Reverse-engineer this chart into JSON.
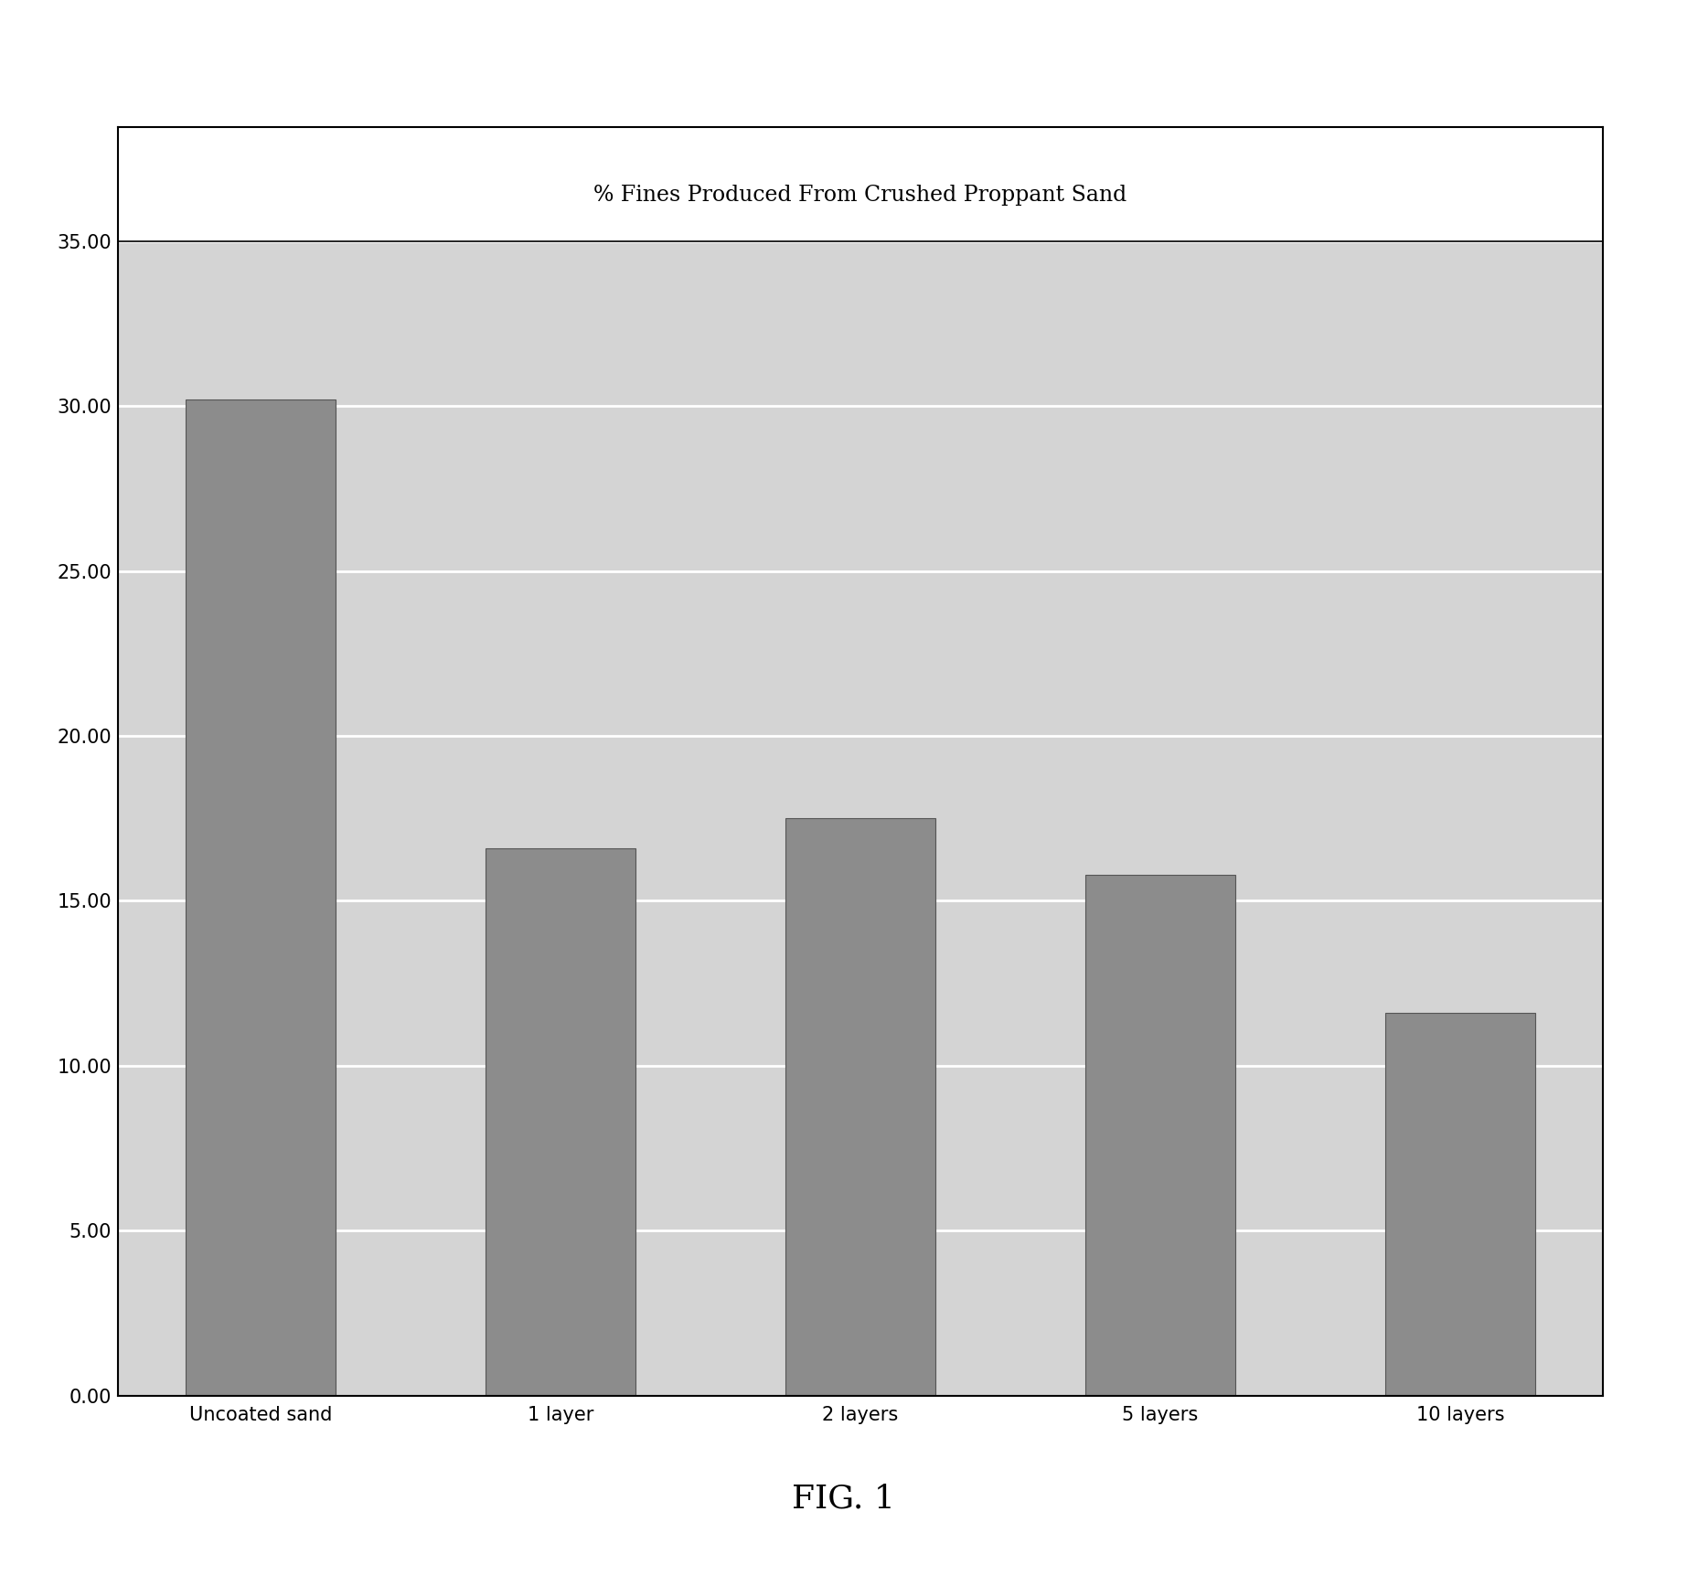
{
  "title": "% Fines Produced From Crushed Proppant Sand",
  "categories": [
    "Uncoated sand",
    "1 layer",
    "2 layers",
    "5 layers",
    "10 layers"
  ],
  "values": [
    30.2,
    16.6,
    17.5,
    15.8,
    11.6
  ],
  "bar_color": "#8c8c8c",
  "bar_edge_color": "#555555",
  "ylim": [
    0,
    35
  ],
  "yticks": [
    0.0,
    5.0,
    10.0,
    15.0,
    20.0,
    25.0,
    30.0,
    35.0
  ],
  "plot_bg_color": "#d4d4d4",
  "outer_bg_color": "#ffffff",
  "title_fontsize": 17,
  "tick_fontsize": 15,
  "xlabel_fontsize": 15,
  "fig_caption": "FIG. 1",
  "fig_caption_fontsize": 26,
  "grid_color": "#ffffff",
  "grid_linewidth": 2.0
}
